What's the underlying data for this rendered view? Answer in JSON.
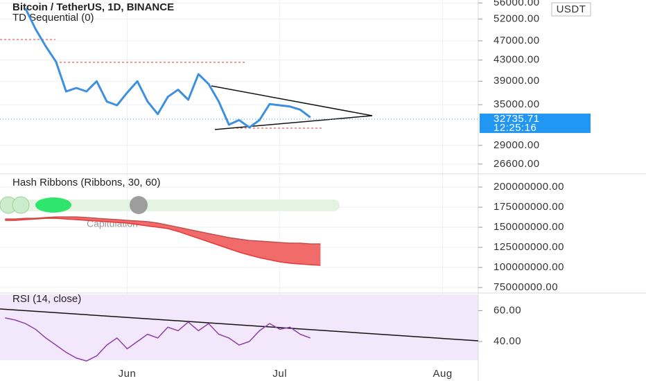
{
  "chart_data": [
    {
      "type": "line",
      "title": "Bitcoin / TetherUS, 1D, BINANCE",
      "subtitle": "TD Sequential (0)",
      "currency": "USDT",
      "last_price": 32735.71,
      "countdown": "12:25:16",
      "log_scale": true,
      "color": "#3d8fe0",
      "ylim": [
        25500,
        56400
      ],
      "yticks": [
        {
          "value": 26600,
          "label": "26600.00"
        },
        {
          "value": 29000,
          "label": "29000.00"
        },
        {
          "value": 35000,
          "label": "35000.00"
        },
        {
          "value": 39000,
          "label": "39000.00"
        },
        {
          "value": 43000,
          "label": "43000.00"
        },
        {
          "value": 47000,
          "label": "47000.00"
        },
        {
          "value": 52000,
          "label": "52000.00"
        },
        {
          "value": 56000,
          "label": "56000.00"
        }
      ],
      "values": [
        null,
        null,
        54600,
        49600,
        45800,
        42700,
        37200,
        37800,
        37200,
        39000,
        35500,
        34900,
        37000,
        39000,
        35500,
        33500,
        36300,
        37500,
        35800,
        40300,
        38500,
        35500,
        31900,
        32600,
        31500,
        32600,
        35100,
        34900,
        34700,
        34200,
        33000,
        null,
        null,
        null,
        null,
        null,
        null,
        null,
        null,
        null,
        null,
        null,
        null,
        null,
        null,
        null,
        null
      ]
    },
    {
      "type": "ribbon",
      "title": "Hash Ribbons (Ribbons, 30, 60)",
      "annotation": "Capitulation",
      "fill": "#f26b6b",
      "ylim": [
        69000000,
        214700000
      ],
      "yticks": [
        {
          "value": 75000000,
          "label": "75000000.00"
        },
        {
          "value": 100000000,
          "label": "100000000.00"
        },
        {
          "value": 125000000,
          "label": "125000000.00"
        },
        {
          "value": 150000000,
          "label": "150000000.00"
        },
        {
          "value": 175000000,
          "label": "175000000.00"
        },
        {
          "value": 200000000,
          "label": "200000000.00"
        }
      ],
      "series": [
        {
          "color": "#c0504d",
          "values": [
            160300000,
            160300000,
            161200000,
            161200000,
            162100000,
            162900000,
            162900000,
            162900000,
            162100000,
            161200000,
            160300000,
            159500000,
            158600000,
            157800000,
            156900000,
            155200000,
            152600000,
            150000000,
            147400000,
            144800000,
            142200000,
            139700000,
            137100000,
            135300000,
            133600000,
            132800000,
            131900000,
            131000000,
            130200000,
            130200000,
            129300000,
            129300000,
            null,
            null,
            null,
            null,
            null,
            null,
            null,
            null,
            null,
            null,
            null,
            null,
            null,
            null,
            null
          ]
        },
        {
          "color": "#e53935",
          "values": [
            158600000,
            158600000,
            159500000,
            160300000,
            161200000,
            161200000,
            160300000,
            159500000,
            158600000,
            157800000,
            156900000,
            156000000,
            155200000,
            153400000,
            151700000,
            150000000,
            148300000,
            144800000,
            140500000,
            136200000,
            131900000,
            127600000,
            123300000,
            119000000,
            115500000,
            112100000,
            109500000,
            106900000,
            105200000,
            104300000,
            103400000,
            102600000,
            null,
            null,
            null,
            null,
            null,
            null,
            null,
            null,
            null,
            null,
            null,
            null,
            null,
            null,
            null
          ]
        }
      ]
    },
    {
      "type": "line",
      "title": "RSI (14, close)",
      "color": "#8e3fa8",
      "ylim": [
        27,
        70.5
      ],
      "yticks": [
        {
          "value": 40,
          "label": "40.00"
        },
        {
          "value": 60,
          "label": "60.00"
        }
      ],
      "categories": [
        null,
        null,
        null,
        null,
        null,
        null,
        null,
        null,
        null,
        null,
        null,
        null,
        "Jun",
        null,
        null,
        null,
        null,
        null,
        null,
        null,
        null,
        null,
        null,
        null,
        null,
        null,
        null,
        "Jul",
        null,
        null,
        null,
        null,
        null,
        null,
        null,
        null,
        null,
        null,
        null,
        null,
        null,
        null,
        null,
        "Aug",
        null,
        null,
        null
      ],
      "values": [
        55.3,
        53.9,
        51.6,
        47.9,
        42.3,
        37.7,
        33.0,
        29.3,
        27.4,
        30.7,
        37.7,
        42.3,
        35.3,
        40.0,
        44.7,
        42.3,
        49.3,
        47.0,
        52.6,
        47.0,
        51.6,
        44.7,
        42.3,
        37.7,
        40.0,
        47.0,
        51.6,
        47.9,
        49.3,
        44.7,
        42.3,
        null,
        null,
        null,
        null,
        null,
        null,
        null,
        null,
        null,
        null,
        null,
        null,
        null,
        null,
        null,
        null
      ]
    }
  ]
}
